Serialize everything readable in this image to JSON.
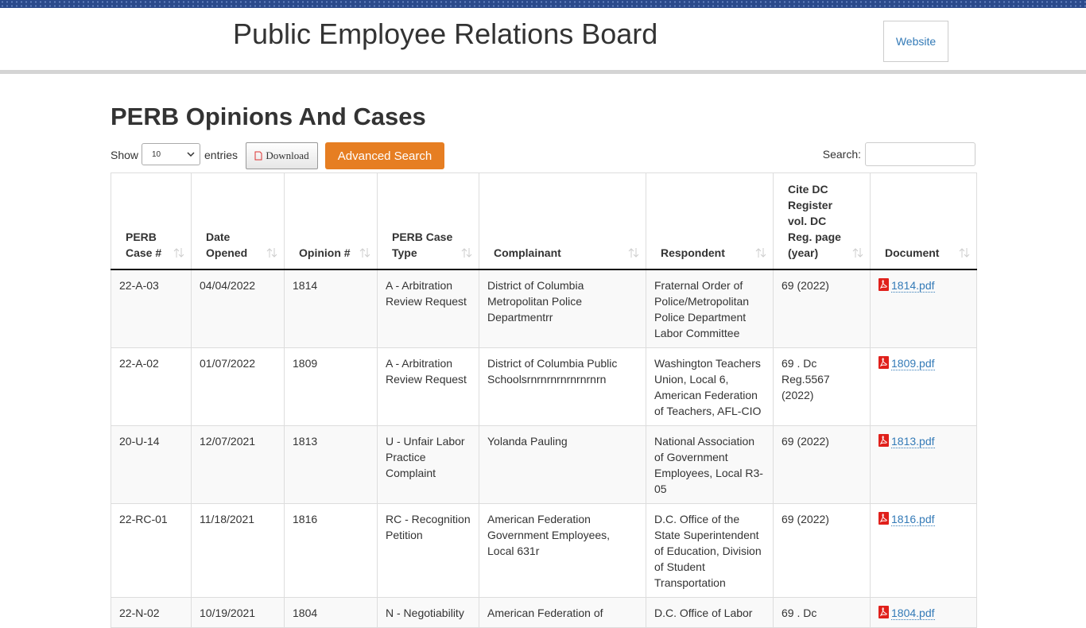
{
  "header": {
    "title": "Public Employee Relations Board",
    "website": "Website"
  },
  "page_title": "PERB Opinions And Cases",
  "controls": {
    "show": "Show",
    "page_size": "10",
    "entries": "entries",
    "download": "Download",
    "advanced_search": "Advanced Search",
    "search": "Search:"
  },
  "table": {
    "columns": [
      "PERB Case #",
      "Date Opened",
      "Opinion #",
      "PERB Case Type",
      "Complainant",
      "Respondent",
      "Cite DC Register vol. DC Reg. page (year)",
      "Document"
    ],
    "rows": [
      [
        "22-A-03",
        "04/04/2022",
        "1814",
        "A - Arbitration Review Request",
        "District of Columbia Metropolitan Police Departmentrr",
        "Fraternal Order of Police/Metropolitan Police Department Labor Committee",
        "69 (2022)",
        "1814.pdf"
      ],
      [
        "22-A-02",
        "01/07/2022",
        "1809",
        "A - Arbitration Review Request",
        "District of Columbia Public Schoolsrnrnrnrnrnrnrnrn",
        "Washington Teachers Union, Local 6, American Federation of Teachers, AFL-CIO",
        "69 . Dc Reg.5567 (2022)",
        "1809.pdf"
      ],
      [
        "20-U-14",
        "12/07/2021",
        "1813",
        "U - Unfair Labor Practice Complaint",
        "Yolanda Pauling",
        "National Association of Government Employees, Local R3-05",
        "69 (2022)",
        "1813.pdf"
      ],
      [
        "22-RC-01",
        "11/18/2021",
        "1816",
        "RC - Recognition Petition",
        "American Federation Government Employees, Local 631r",
        "D.C. Office of the State Superintendent of Education, Division of Student Transportation",
        "69 (2022)",
        "1816.pdf"
      ],
      [
        "22-N-02",
        "10/19/2021",
        "1804",
        "N - Negotiability",
        "American Federation of",
        "D.C. Office of Labor",
        "69 . Dc",
        "1804.pdf"
      ]
    ]
  }
}
